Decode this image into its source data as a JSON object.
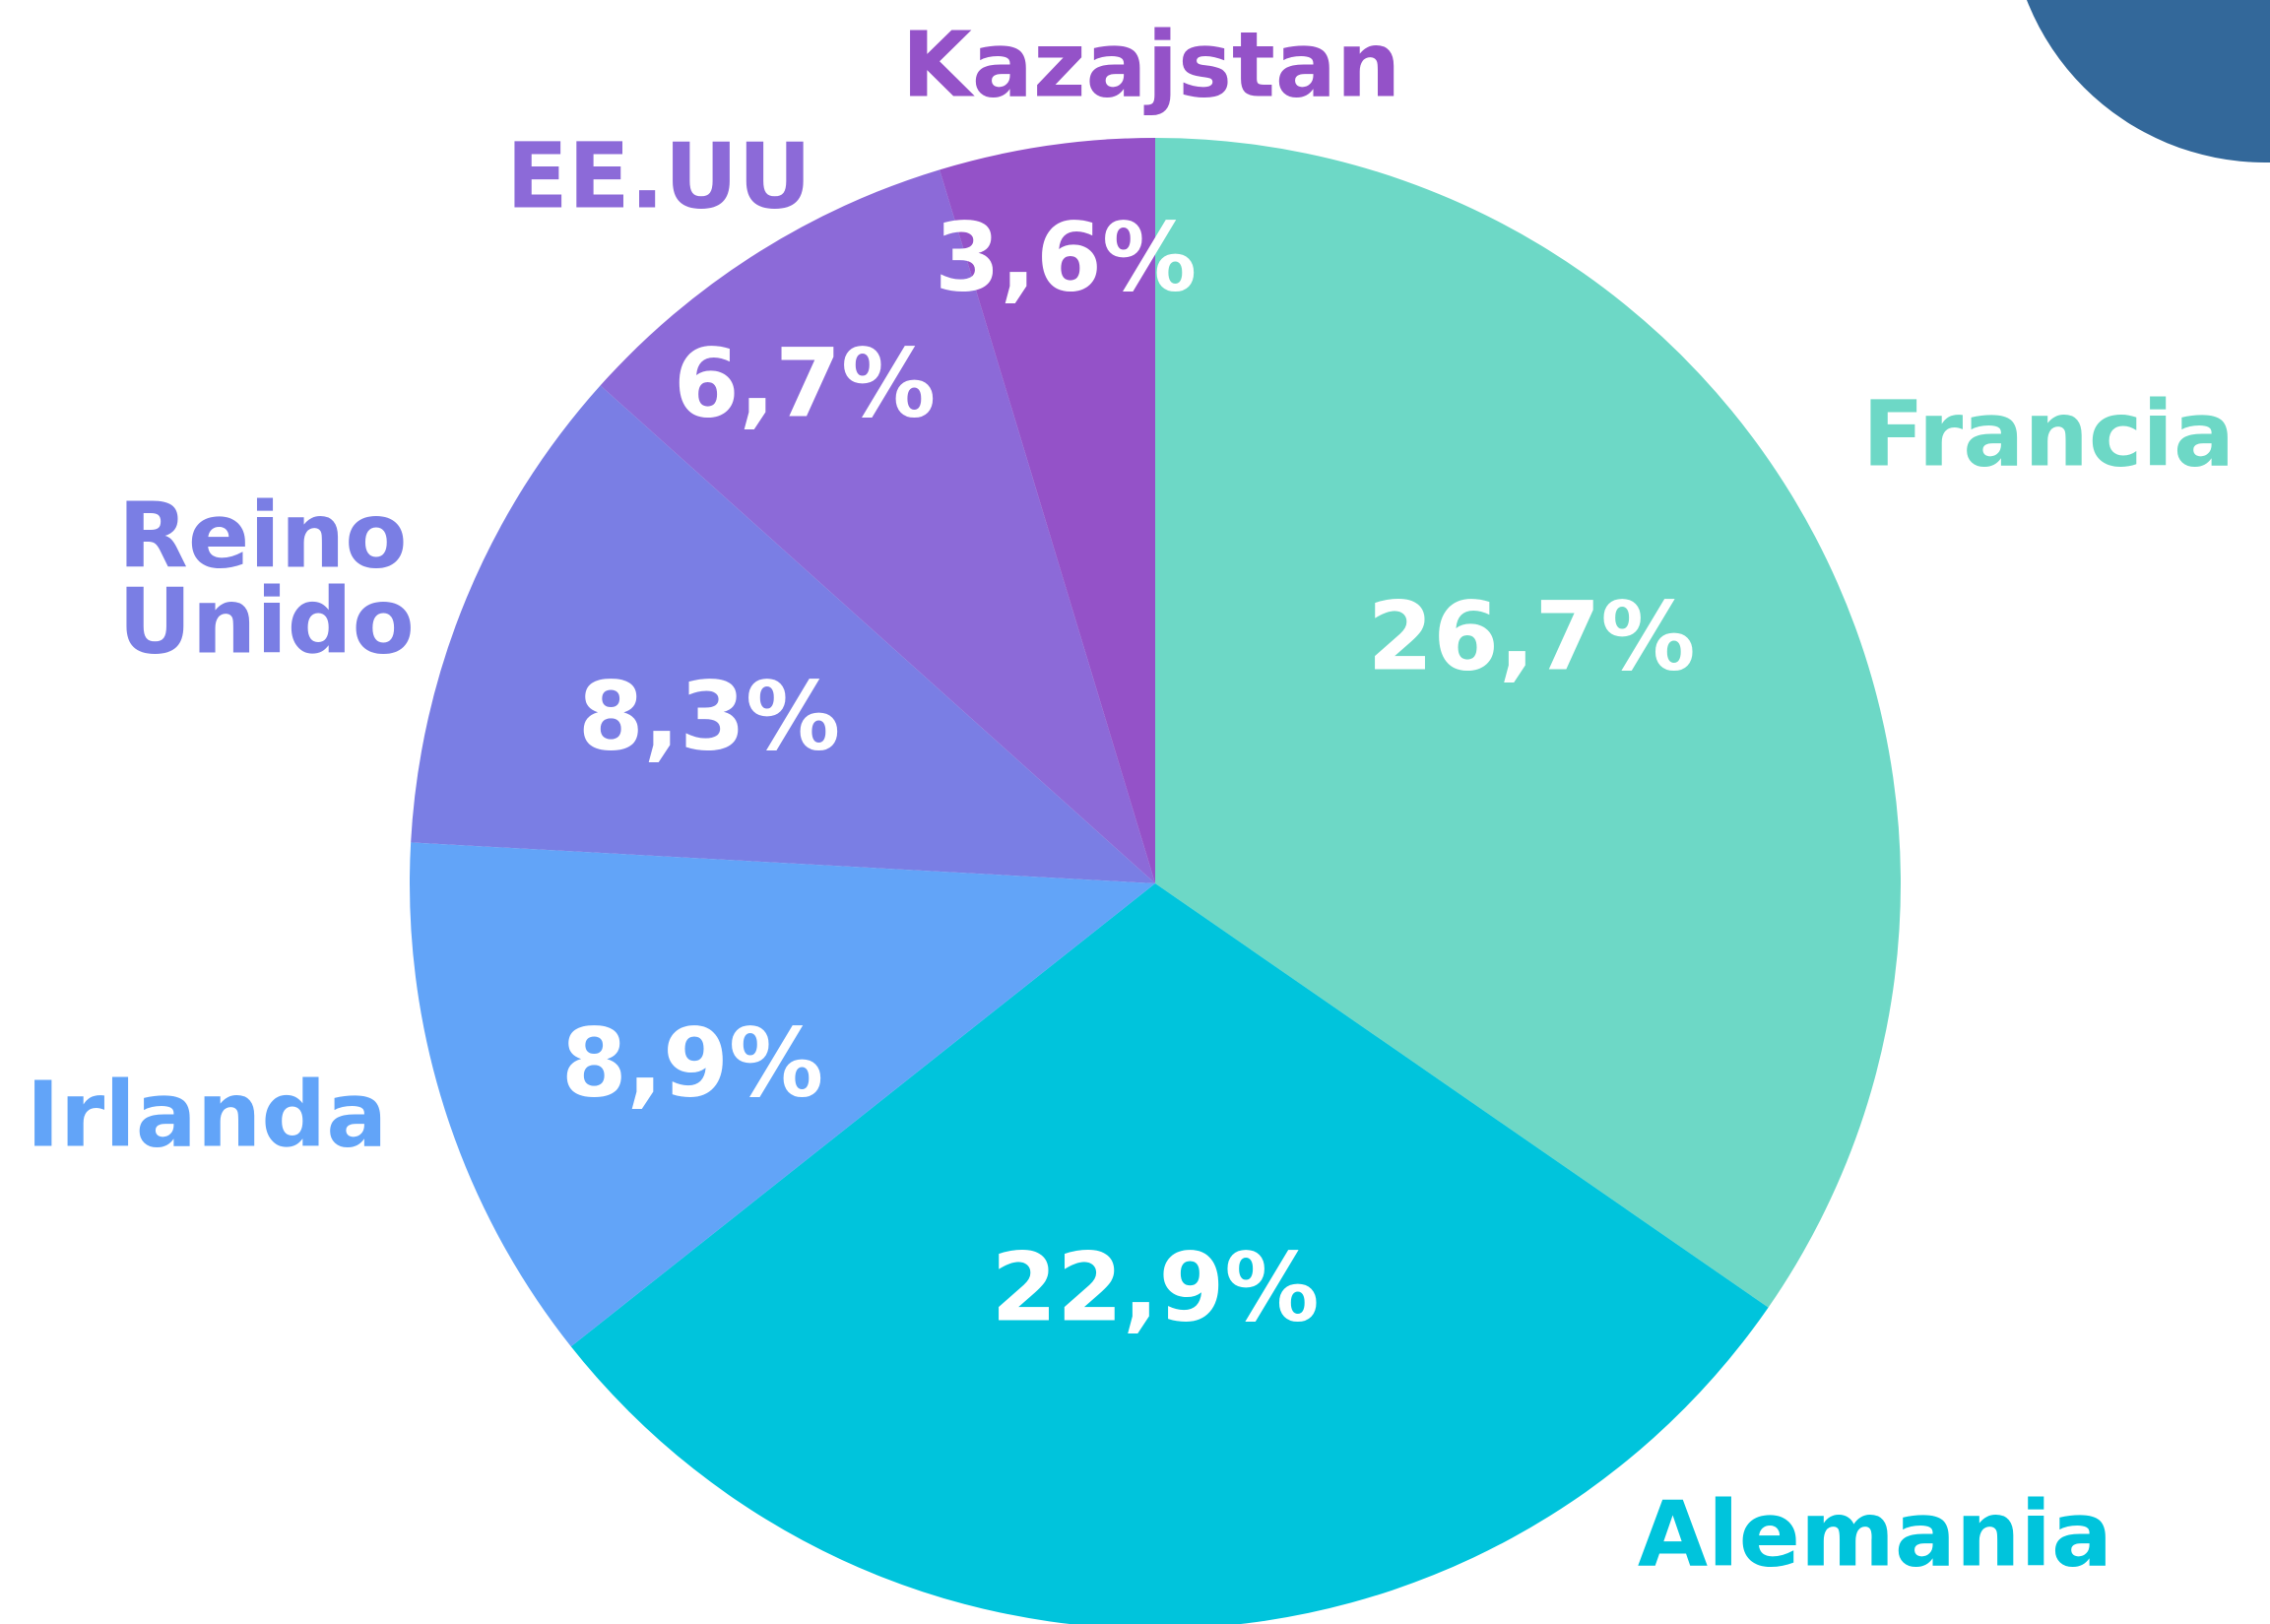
{
  "chart_data": {
    "type": "pie",
    "categories": [
      "Francia",
      "Alemania",
      "Irlanda",
      "Reino Unido",
      "EE.UU",
      "Kazajstan"
    ],
    "values": [
      26.7,
      22.9,
      8.9,
      8.3,
      6.7,
      3.6
    ],
    "value_labels": [
      "26,7%",
      "22,9%",
      "8,9%",
      "8,3%",
      "6,7%",
      "3,6%"
    ],
    "colors": [
      "#6dd8c6",
      "#00c4dc",
      "#62a4f8",
      "#7a7ee4",
      "#8c6ad8",
      "#9452c8"
    ]
  }
}
